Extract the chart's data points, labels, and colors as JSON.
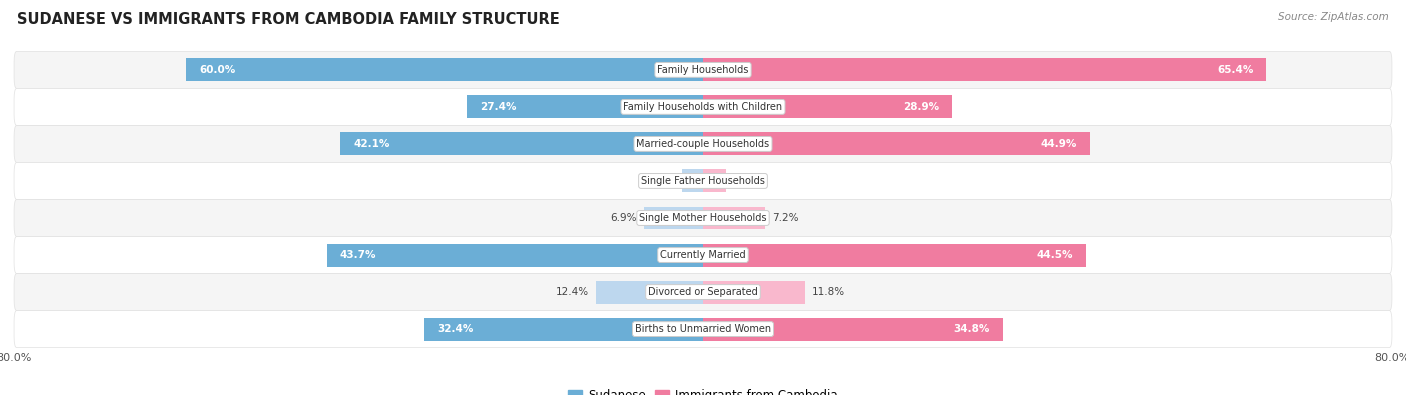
{
  "title": "SUDANESE VS IMMIGRANTS FROM CAMBODIA FAMILY STRUCTURE",
  "source": "Source: ZipAtlas.com",
  "categories": [
    "Family Households",
    "Family Households with Children",
    "Married-couple Households",
    "Single Father Households",
    "Single Mother Households",
    "Currently Married",
    "Divorced or Separated",
    "Births to Unmarried Women"
  ],
  "sudanese_values": [
    60.0,
    27.4,
    42.1,
    2.4,
    6.9,
    43.7,
    12.4,
    32.4
  ],
  "cambodia_values": [
    65.4,
    28.9,
    44.9,
    2.7,
    7.2,
    44.5,
    11.8,
    34.8
  ],
  "axis_max": 80.0,
  "color_sudanese": "#6baed6",
  "color_cambodia": "#f07ca0",
  "color_sudanese_light": "#bdd7ee",
  "color_cambodia_light": "#f9b8cd",
  "background_row_light": "#f5f5f5",
  "background_row_white": "#ffffff",
  "bar_height": 0.62,
  "legend_label_sudanese": "Sudanese",
  "legend_label_cambodia": "Immigrants from Cambodia",
  "label_threshold": 15.0
}
